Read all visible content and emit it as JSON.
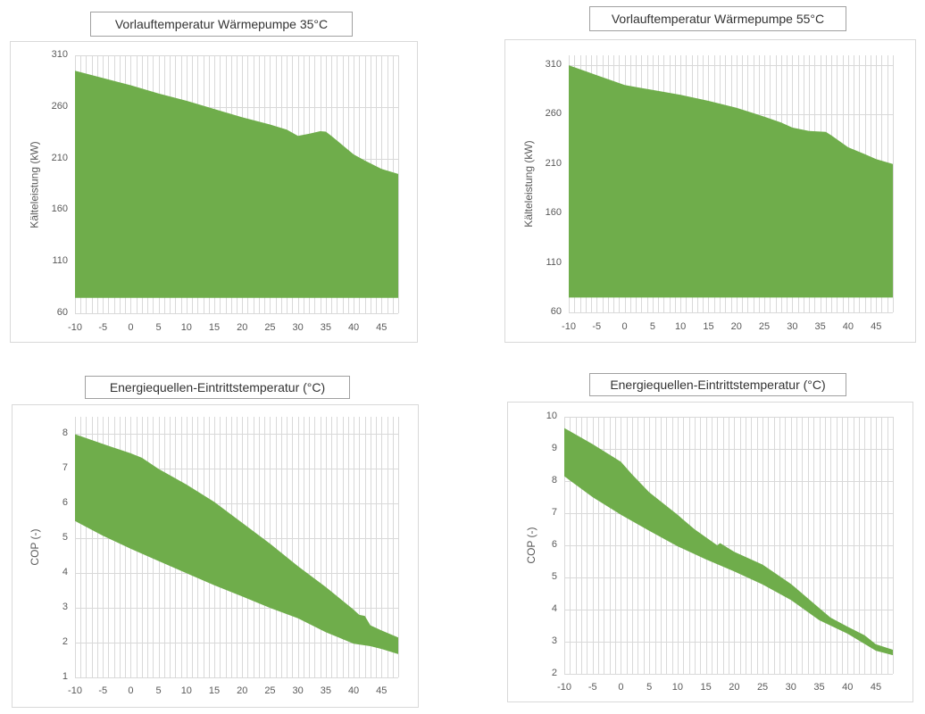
{
  "page": {
    "background": "#ffffff"
  },
  "colors": {
    "area_fill": "#6fad4b",
    "gridline": "#d9d9d9",
    "frame_border": "#d9d9d9",
    "title_border": "#a0a0a0",
    "tick_text": "#595959",
    "title_text": "#333333"
  },
  "chart_data": [
    {
      "type": "area",
      "title": "Vorlauftemperatur Wärmepumpe 35°C",
      "xlabel": "",
      "ylabel": "Kälteleistung (kW)",
      "xlim": [
        -10,
        48
      ],
      "ylim": [
        60,
        310
      ],
      "x_ticks": [
        -10,
        -5,
        0,
        5,
        10,
        15,
        20,
        25,
        30,
        35,
        40,
        45
      ],
      "y_ticks": [
        310,
        260,
        210,
        160,
        110,
        60
      ],
      "x_minor_grid": 1,
      "grid": true,
      "legend_position": "none",
      "series": [
        {
          "name": "upper_bound",
          "points": [
            [
              -10,
              295
            ],
            [
              -5,
              288
            ],
            [
              0,
              281
            ],
            [
              5,
              273
            ],
            [
              10,
              266
            ],
            [
              15,
              258
            ],
            [
              20,
              250
            ],
            [
              25,
              243
            ],
            [
              28,
              238
            ],
            [
              30,
              232
            ],
            [
              32,
              234
            ],
            [
              34,
              236.5
            ],
            [
              35,
              236
            ],
            [
              36,
              232
            ],
            [
              38,
              223
            ],
            [
              40,
              214
            ],
            [
              42,
              208
            ],
            [
              45,
              200
            ],
            [
              48,
              195
            ]
          ]
        },
        {
          "name": "lower_bound",
          "points": [
            [
              -10,
              75
            ],
            [
              48,
              75
            ]
          ]
        }
      ]
    },
    {
      "type": "area",
      "title": "Vorlauftemperatur Wärmepumpe 55°C",
      "xlabel": "",
      "ylabel": "Kälteleistung (kW)",
      "xlim": [
        -10,
        48
      ],
      "ylim": [
        60,
        320
      ],
      "x_ticks": [
        -10,
        -5,
        0,
        5,
        10,
        15,
        20,
        25,
        30,
        35,
        40,
        45
      ],
      "y_ticks": [
        310,
        260,
        210,
        160,
        110,
        60
      ],
      "x_minor_grid": 1,
      "grid": true,
      "legend_position": "none",
      "series": [
        {
          "name": "upper_bound",
          "points": [
            [
              -10,
              310
            ],
            [
              -7,
              304
            ],
            [
              -5,
              300
            ],
            [
              -3,
              296
            ],
            [
              0,
              290
            ],
            [
              3,
              287
            ],
            [
              5,
              285
            ],
            [
              10,
              280
            ],
            [
              15,
              274
            ],
            [
              20,
              267
            ],
            [
              25,
              258
            ],
            [
              28,
              252
            ],
            [
              30,
              247
            ],
            [
              33,
              243.5
            ],
            [
              36,
              242.5
            ],
            [
              37,
              239
            ],
            [
              40,
              227
            ],
            [
              43,
              220
            ],
            [
              45,
              215
            ],
            [
              48,
              210
            ]
          ]
        },
        {
          "name": "lower_bound",
          "points": [
            [
              -10,
              75
            ],
            [
              48,
              75
            ]
          ]
        }
      ]
    },
    {
      "type": "area",
      "title": "Energiequellen-Eintrittstemperatur (°C)",
      "xlabel": "",
      "ylabel": "COP (-)",
      "xlim": [
        -10,
        48
      ],
      "ylim": [
        1,
        8.5
      ],
      "x_ticks": [
        -10,
        -5,
        0,
        5,
        10,
        15,
        20,
        25,
        30,
        35,
        40,
        45
      ],
      "y_ticks": [
        8,
        7,
        6,
        5,
        4,
        3,
        2,
        1
      ],
      "x_minor_grid": 1,
      "grid": true,
      "legend_position": "none",
      "series": [
        {
          "name": "upper_bound",
          "points": [
            [
              -10,
              8
            ],
            [
              -5,
              7.72
            ],
            [
              0,
              7.45
            ],
            [
              2,
              7.32
            ],
            [
              5,
              7
            ],
            [
              10,
              6.55
            ],
            [
              15,
              6.05
            ],
            [
              20,
              5.45
            ],
            [
              25,
              4.85
            ],
            [
              30,
              4.2
            ],
            [
              35,
              3.6
            ],
            [
              40,
              2.95
            ],
            [
              41,
              2.8
            ],
            [
              42,
              2.77
            ],
            [
              43,
              2.5
            ],
            [
              45,
              2.35
            ],
            [
              48,
              2.15
            ]
          ]
        },
        {
          "name": "lower_bound",
          "points": [
            [
              -10,
              5.5
            ],
            [
              -5,
              5.08
            ],
            [
              0,
              4.7
            ],
            [
              5,
              4.35
            ],
            [
              10,
              4
            ],
            [
              15,
              3.65
            ],
            [
              20,
              3.33
            ],
            [
              25,
              3
            ],
            [
              30,
              2.7
            ],
            [
              35,
              2.3
            ],
            [
              40,
              1.97
            ],
            [
              43,
              1.9
            ],
            [
              45,
              1.82
            ],
            [
              48,
              1.67
            ]
          ]
        }
      ]
    },
    {
      "type": "area",
      "title": "Energiequellen-Eintrittstemperatur (°C)",
      "xlabel": "",
      "ylabel": "COP (-)",
      "xlim": [
        -10,
        48
      ],
      "ylim": [
        2,
        10
      ],
      "x_ticks": [
        -10,
        -5,
        0,
        5,
        10,
        15,
        20,
        25,
        30,
        35,
        40,
        45
      ],
      "y_ticks": [
        10,
        9,
        8,
        7,
        6,
        5,
        4,
        3,
        2
      ],
      "x_minor_grid": 1,
      "grid": true,
      "legend_position": "none",
      "series": [
        {
          "name": "upper_bound",
          "points": [
            [
              -10,
              9.65
            ],
            [
              -5,
              9.15
            ],
            [
              0,
              8.6
            ],
            [
              2,
              8.2
            ],
            [
              5,
              7.65
            ],
            [
              10,
              6.95
            ],
            [
              13,
              6.5
            ],
            [
              15,
              6.25
            ],
            [
              17,
              6
            ],
            [
              17.5,
              6.07
            ],
            [
              20,
              5.8
            ],
            [
              25,
              5.4
            ],
            [
              30,
              4.8
            ],
            [
              33,
              4.35
            ],
            [
              35,
              4.05
            ],
            [
              37,
              3.75
            ],
            [
              40,
              3.47
            ],
            [
              43,
              3.2
            ],
            [
              45,
              2.92
            ],
            [
              48,
              2.75
            ]
          ]
        },
        {
          "name": "lower_bound",
          "points": [
            [
              -10,
              8.15
            ],
            [
              -5,
              7.5
            ],
            [
              0,
              6.95
            ],
            [
              5,
              6.45
            ],
            [
              10,
              5.97
            ],
            [
              15,
              5.56
            ],
            [
              20,
              5.19
            ],
            [
              25,
              4.78
            ],
            [
              30,
              4.3
            ],
            [
              35,
              3.67
            ],
            [
              40,
              3.25
            ],
            [
              45,
              2.72
            ],
            [
              48,
              2.58
            ]
          ]
        }
      ]
    }
  ]
}
